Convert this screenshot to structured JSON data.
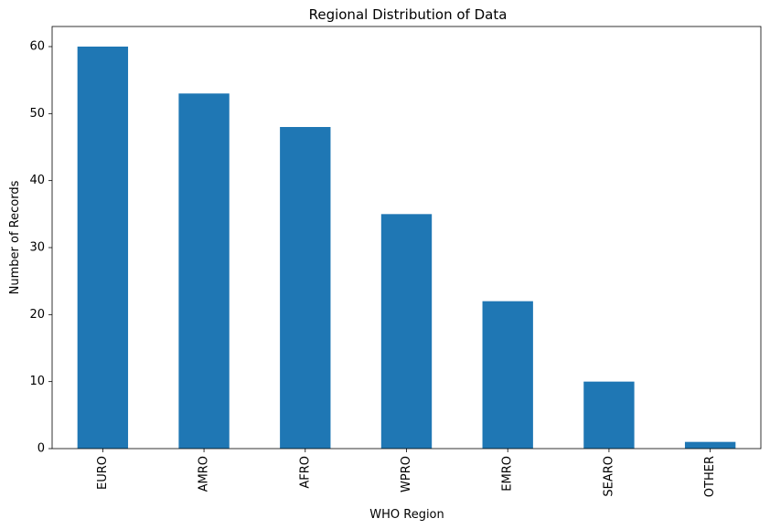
{
  "chart_data": {
    "type": "bar",
    "title": "Regional Distribution of Data",
    "xlabel": "WHO Region",
    "ylabel": "Number of Records",
    "categories": [
      "EURO",
      "AMRO",
      "AFRO",
      "WPRO",
      "EMRO",
      "SEARO",
      "OTHER"
    ],
    "values": [
      60,
      53,
      48,
      35,
      22,
      10,
      1
    ],
    "ylim": [
      0,
      63
    ],
    "yticks": [
      "0",
      "10",
      "20",
      "30",
      "40",
      "50",
      "60"
    ],
    "bar_color": "#1f77b4",
    "grid": false,
    "legend": false
  }
}
